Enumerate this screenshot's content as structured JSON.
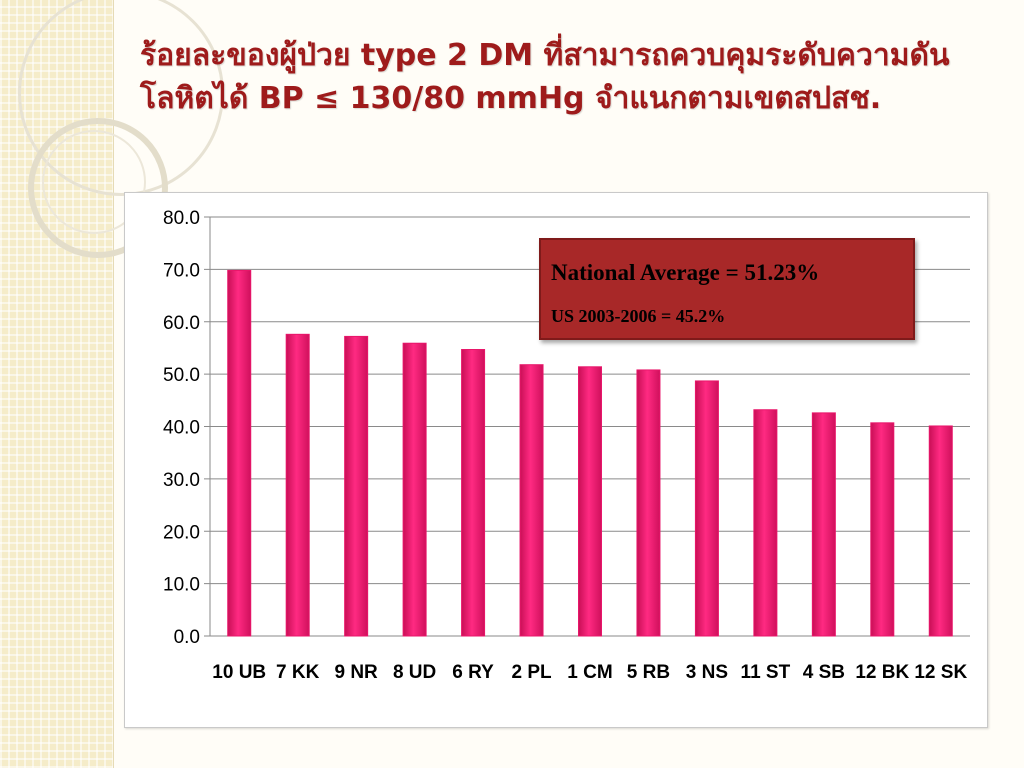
{
  "slide": {
    "title": "ร้อยละของผู้ป่วย type 2 DM ที่สามารถควบคุมระดับความดันโลหิตได้ BP ≤ 130/80 mmHg จำแนกตามเขตสปสช."
  },
  "info_box": {
    "line1": "National Average = 51.23%",
    "line2": "US 2003-2006 = 45.2%"
  },
  "colors": {
    "bar": "#e8166a",
    "title": "#9e1b1b",
    "info_box_fill": "#a82828"
  },
  "chart_data": {
    "type": "bar",
    "title": "",
    "xlabel": "",
    "ylabel": "",
    "ylim": [
      0,
      80
    ],
    "yticks": [
      "0.0",
      "10.0",
      "20.0",
      "30.0",
      "40.0",
      "50.0",
      "60.0",
      "70.0",
      "80.0"
    ],
    "grid": true,
    "legend": "none",
    "categories": [
      "10 UB",
      "7 KK",
      "9 NR",
      "8 UD",
      "6 RY",
      "2 PL",
      "1 CM",
      "5 RB",
      "3 NS",
      "11 ST",
      "4 SB",
      "12 BK",
      "12 SK"
    ],
    "values": [
      69.8,
      57.6,
      57.2,
      55.9,
      54.7,
      51.8,
      51.4,
      50.8,
      48.7,
      43.2,
      42.6,
      40.7,
      40.1
    ]
  }
}
